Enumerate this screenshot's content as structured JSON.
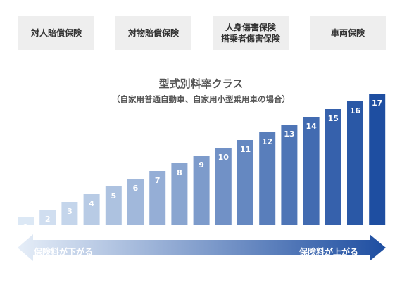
{
  "tabs": [
    {
      "lines": [
        "対人賠償保険"
      ]
    },
    {
      "lines": [
        "対物賠償保険"
      ]
    },
    {
      "lines": [
        "人身傷害保険",
        "搭乗者傷害保険"
      ]
    },
    {
      "lines": [
        "車両保険"
      ]
    }
  ],
  "chart_data": {
    "type": "bar",
    "title": "型式別料率クラス",
    "subtitle": "（自家用普通自動車、自家用小型乗用車の場合）",
    "categories": [
      "1",
      "2",
      "3",
      "4",
      "5",
      "6",
      "7",
      "8",
      "9",
      "10",
      "11",
      "12",
      "13",
      "14",
      "15",
      "16",
      "17"
    ],
    "values": [
      1,
      2,
      3,
      4,
      5,
      6,
      7,
      8,
      9,
      10,
      11,
      12,
      13,
      14,
      15,
      16,
      17
    ],
    "ylim": [
      0,
      17
    ],
    "grid": false,
    "colors": {
      "low": "#dce8f5",
      "high": "#1e4ea1"
    }
  },
  "arrow": {
    "left_label": "保険料が下がる",
    "right_label": "保険料が上がる",
    "colors": {
      "left": "#e6eef8",
      "right": "#1e4ea1"
    }
  }
}
